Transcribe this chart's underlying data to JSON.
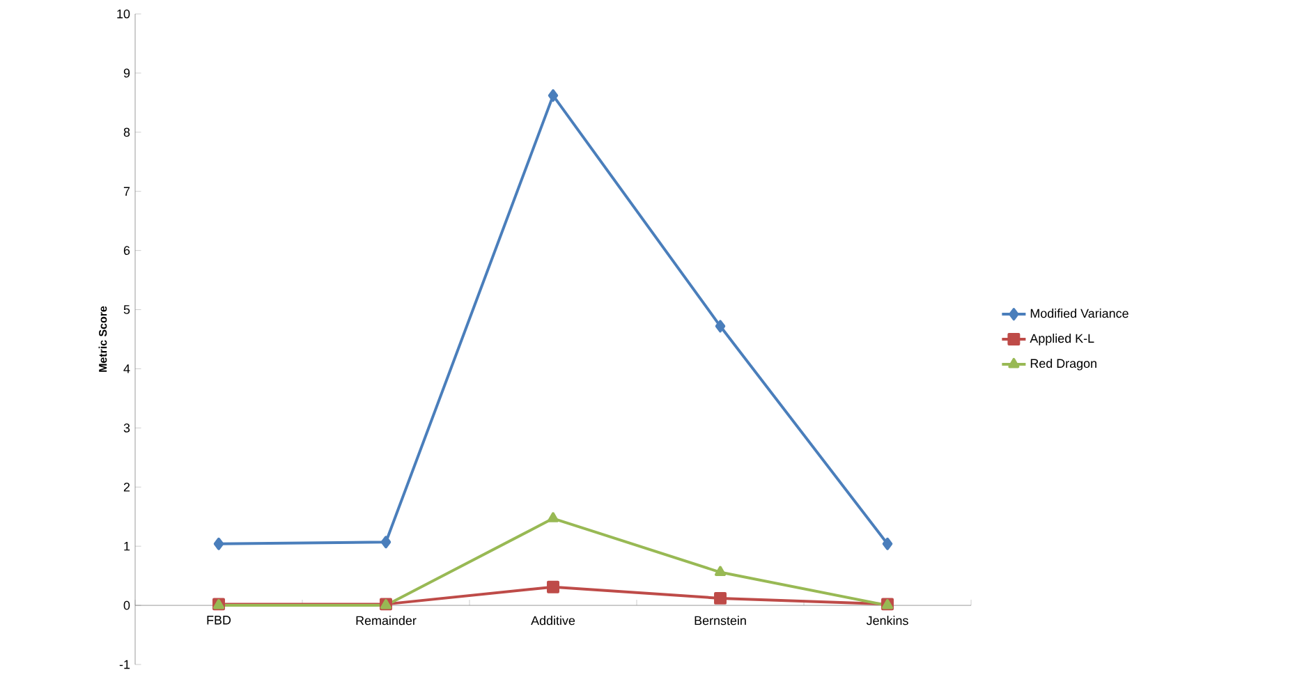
{
  "chart_data": {
    "type": "line",
    "ylabel": "Metric Score",
    "categories": [
      "FBD",
      "Remainder",
      "Additive",
      "Bernstein",
      "Jenkins"
    ],
    "series": [
      {
        "name": "Modified Variance",
        "color": "#4a7ebb",
        "marker": "diamond",
        "values": [
          1.04,
          1.07,
          8.62,
          4.72,
          1.04
        ]
      },
      {
        "name": "Applied K-L",
        "color": "#be4b48",
        "marker": "square",
        "values": [
          0.02,
          0.02,
          0.31,
          0.12,
          0.02
        ]
      },
      {
        "name": "Red Dragon",
        "color": "#98b954",
        "marker": "triangle",
        "values": [
          0,
          0,
          1.47,
          0.56,
          0
        ]
      }
    ],
    "ylim": [
      -1,
      10
    ],
    "yticks": [
      -1,
      0,
      1,
      2,
      3,
      4,
      5,
      6,
      7,
      8,
      9,
      10
    ],
    "grid": false,
    "legend": "right",
    "line_style": "solid"
  }
}
